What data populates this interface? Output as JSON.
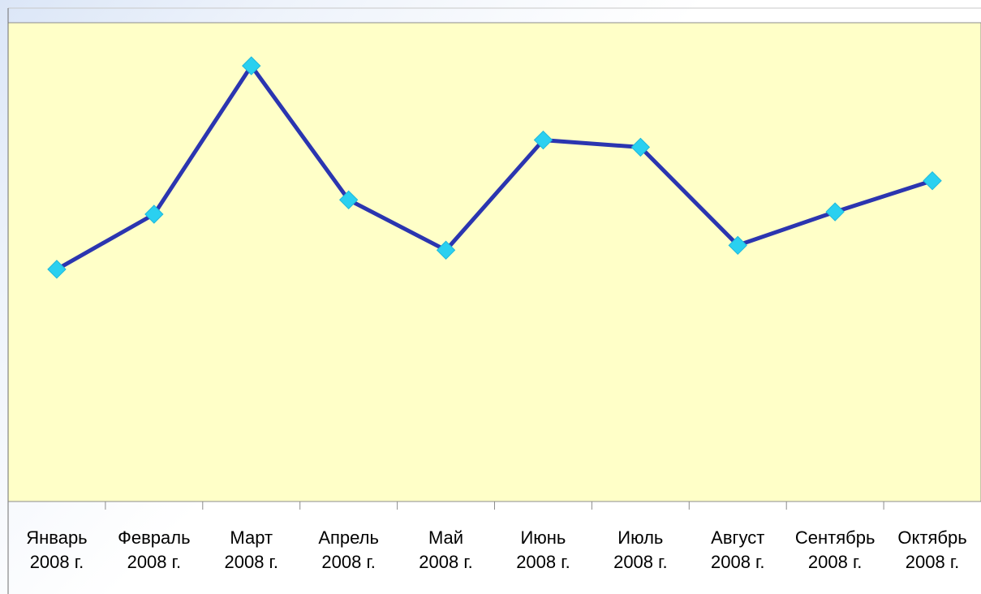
{
  "chart_data": {
    "type": "line",
    "title": "",
    "xlabel": "",
    "ylabel": "",
    "grid": false,
    "legend": "none",
    "categories": [
      "Январь 2008 г.",
      "Февраль 2008 г.",
      "Март 2008 г.",
      "Апрель 2008 г.",
      "Май 2008 г.",
      "Июнь 2008 г.",
      "Июль 2008 г.",
      "Август 2008 г.",
      "Сентябрь 2008 г.",
      "Октябрь 2008 г."
    ],
    "category_lines": [
      [
        "Январь",
        "2008 г."
      ],
      [
        "Февраль",
        "2008 г."
      ],
      [
        "Март",
        "2008 г."
      ],
      [
        "Апрель",
        "2008 г."
      ],
      [
        "Май",
        "2008 г."
      ],
      [
        "Июнь",
        "2008 г."
      ],
      [
        "Июль",
        "2008 г."
      ],
      [
        "Август",
        "2008 г."
      ],
      [
        "Сентябрь",
        "2008 г."
      ],
      [
        "Октябрь",
        "2008 г."
      ]
    ],
    "series": [
      {
        "values": [
          48.5,
          60.0,
          91.0,
          63.0,
          52.5,
          75.5,
          74.0,
          53.5,
          60.5,
          67.0
        ]
      }
    ],
    "ylim": [
      0,
      100
    ],
    "colors": {
      "plot_background": "#ffffc8",
      "line": "#2b35b0",
      "marker": "#2ad0f0",
      "axis": "#8c8c8c"
    }
  }
}
